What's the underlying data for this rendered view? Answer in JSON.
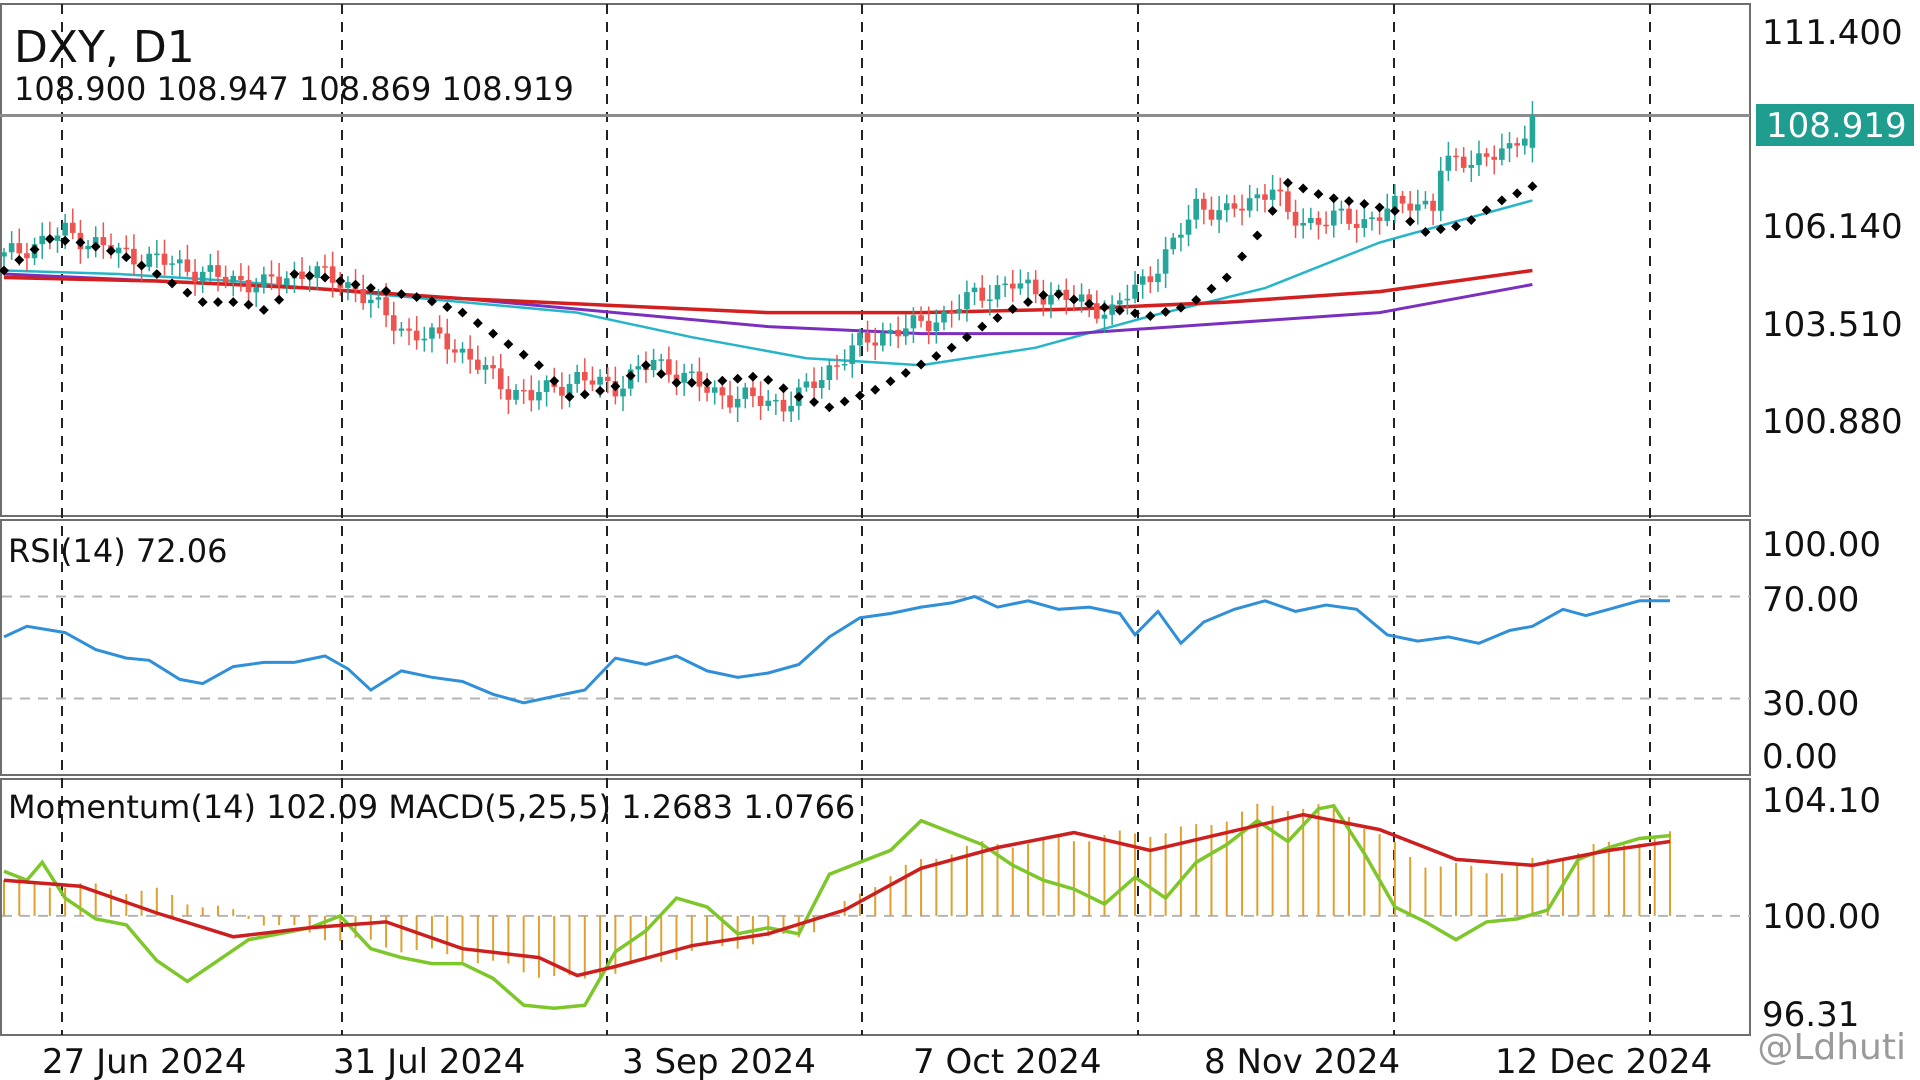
{
  "chart_title": "DXY, D1",
  "ohlc_line": "108.900 108.947 108.869 108.919",
  "watermark": "@Ldhuti",
  "colors": {
    "up": "#26a69a",
    "down": "#ef5350",
    "ma_fast": "#26b5c8",
    "ma_mid": "#7b2fbe",
    "ma_slow": "#d21f1f",
    "sar": "#000000",
    "rsi": "#2f8fd8",
    "momentum": "#7dc72b",
    "macd_signal": "#cc1f1f",
    "macd_hist": "#e0a030",
    "price_tag": "#1f9d8f"
  },
  "x_axis": {
    "labels": [
      "27 Jun 2024",
      "31 Jul 2024",
      "3 Sep 2024",
      "7 Oct 2024",
      "8 Nov 2024",
      "12 Dec 2024"
    ]
  },
  "chart_data": [
    {
      "type": "candlestick",
      "title": "DXY, D1",
      "y_ticks": [
        "111.400",
        "106.140",
        "103.510",
        "100.880"
      ],
      "ylim": [
        97.5,
        112.1
      ],
      "last_price_label": "108.919",
      "last_price": 108.919,
      "ohlc": [
        108.9,
        108.947,
        108.869,
        108.919
      ],
      "close_path": [
        [
          0,
          104.9
        ],
        [
          8,
          105.6
        ],
        [
          15,
          105.0
        ],
        [
          22,
          104.7
        ],
        [
          28,
          104.3
        ],
        [
          34,
          104.1
        ],
        [
          40,
          104.5
        ],
        [
          46,
          104.0
        ],
        [
          50,
          103.2
        ],
        [
          53,
          102.7
        ],
        [
          58,
          102.5
        ],
        [
          62,
          101.8
        ],
        [
          66,
          101.1
        ],
        [
          69,
          100.9
        ],
        [
          72,
          101.2
        ],
        [
          75,
          101.4
        ],
        [
          80,
          101.2
        ],
        [
          85,
          101.9
        ],
        [
          88,
          101.6
        ],
        [
          92,
          101.1
        ],
        [
          95,
          100.9
        ],
        [
          99,
          100.8
        ],
        [
          102,
          100.7
        ],
        [
          104,
          100.9
        ],
        [
          108,
          101.7
        ],
        [
          112,
          102.4
        ],
        [
          115,
          102.7
        ],
        [
          119,
          102.9
        ],
        [
          123,
          103.2
        ],
        [
          127,
          103.8
        ],
        [
          132,
          104.1
        ],
        [
          137,
          103.8
        ],
        [
          141,
          103.6
        ],
        [
          145,
          103.3
        ],
        [
          147,
          103.8
        ],
        [
          150,
          104.4
        ],
        [
          153,
          105.2
        ],
        [
          156,
          106.4
        ],
        [
          160,
          106.1
        ],
        [
          163,
          106.5
        ],
        [
          166,
          106.9
        ],
        [
          168,
          106.0
        ],
        [
          171,
          105.9
        ],
        [
          174,
          106.0
        ],
        [
          178,
          105.9
        ],
        [
          181,
          106.2
        ],
        [
          184,
          106.5
        ],
        [
          187,
          106.3
        ],
        [
          188,
          107.4
        ],
        [
          191,
          107.7
        ],
        [
          194,
          107.7
        ],
        [
          197,
          107.9
        ],
        [
          200,
          108.9
        ]
      ],
      "sar": [
        [
          0,
          104.5
        ],
        [
          6,
          105.4
        ],
        [
          10,
          105.3
        ],
        [
          15,
          105.0
        ],
        [
          20,
          104.4
        ],
        [
          26,
          103.6
        ],
        [
          31,
          103.6
        ],
        [
          35,
          103.3
        ],
        [
          38,
          104.4
        ],
        [
          42,
          104.3
        ],
        [
          48,
          104.0
        ],
        [
          55,
          103.7
        ],
        [
          60,
          103.3
        ],
        [
          64,
          102.7
        ],
        [
          70,
          101.8
        ],
        [
          74,
          100.9
        ],
        [
          77,
          101.0
        ],
        [
          80,
          101.2
        ],
        [
          84,
          101.8
        ],
        [
          88,
          101.3
        ],
        [
          92,
          101.3
        ],
        [
          99,
          101.5
        ],
        [
          104,
          100.9
        ],
        [
          108,
          100.6
        ],
        [
          114,
          101.1
        ],
        [
          119,
          101.7
        ],
        [
          124,
          102.3
        ],
        [
          128,
          102.9
        ],
        [
          132,
          103.4
        ],
        [
          137,
          103.9
        ],
        [
          141,
          103.6
        ],
        [
          145,
          103.4
        ],
        [
          150,
          103.2
        ],
        [
          155,
          103.5
        ],
        [
          160,
          104.3
        ],
        [
          165,
          105.8
        ],
        [
          168,
          107.0
        ],
        [
          173,
          106.6
        ],
        [
          178,
          106.4
        ],
        [
          182,
          106.2
        ],
        [
          186,
          105.6
        ],
        [
          191,
          105.8
        ],
        [
          196,
          106.5
        ],
        [
          200,
          106.9
        ]
      ],
      "series": [
        {
          "points": [
            [
              0,
              104.5
            ],
            [
              15,
              104.4
            ],
            [
              30,
              104.2
            ],
            [
              45,
              103.9
            ],
            [
              60,
              103.6
            ],
            [
              75,
              103.3
            ],
            [
              90,
              102.6
            ],
            [
              105,
              102.0
            ],
            [
              120,
              101.8
            ],
            [
              135,
              102.3
            ],
            [
              150,
              103.2
            ],
            [
              165,
              104.0
            ],
            [
              180,
              105.3
            ],
            [
              200,
              106.5
            ]
          ]
        },
        {
          "points": [
            [
              0,
              104.4
            ],
            [
              20,
              104.2
            ],
            [
              40,
              104.0
            ],
            [
              60,
              103.7
            ],
            [
              80,
              103.3
            ],
            [
              100,
              102.9
            ],
            [
              120,
              102.7
            ],
            [
              140,
              102.7
            ],
            [
              160,
              103.0
            ],
            [
              180,
              103.3
            ],
            [
              200,
              104.1
            ]
          ]
        },
        {
          "points": [
            [
              0,
              104.3
            ],
            [
              20,
              104.2
            ],
            [
              40,
              104.0
            ],
            [
              60,
              103.7
            ],
            [
              80,
              103.5
            ],
            [
              100,
              103.3
            ],
            [
              120,
              103.3
            ],
            [
              140,
              103.4
            ],
            [
              160,
              103.6
            ],
            [
              180,
              103.9
            ],
            [
              200,
              104.5
            ]
          ]
        }
      ]
    },
    {
      "type": "line",
      "label": "RSI(14) 72.06",
      "y_ticks": [
        "100.00",
        "70.00",
        "30.00",
        "0.00"
      ],
      "ylim": [
        0,
        100
      ],
      "levels": [
        70,
        30
      ],
      "series": [
        {
          "points": [
            [
              0,
              55
            ],
            [
              3,
              60
            ],
            [
              8,
              57
            ],
            [
              12,
              49
            ],
            [
              16,
              45
            ],
            [
              19,
              44
            ],
            [
              23,
              35
            ],
            [
              26,
              33
            ],
            [
              30,
              41
            ],
            [
              34,
              43
            ],
            [
              38,
              43
            ],
            [
              42,
              46
            ],
            [
              45,
              40
            ],
            [
              48,
              30
            ],
            [
              52,
              39
            ],
            [
              56,
              36
            ],
            [
              60,
              34
            ],
            [
              64,
              28
            ],
            [
              68,
              24
            ],
            [
              72,
              27
            ],
            [
              76,
              30
            ],
            [
              80,
              45
            ],
            [
              84,
              42
            ],
            [
              88,
              46
            ],
            [
              92,
              39
            ],
            [
              96,
              36
            ],
            [
              100,
              38
            ],
            [
              104,
              42
            ],
            [
              108,
              55
            ],
            [
              112,
              64
            ],
            [
              116,
              66
            ],
            [
              120,
              69
            ],
            [
              124,
              71
            ],
            [
              127,
              74
            ],
            [
              130,
              69
            ],
            [
              134,
              72
            ],
            [
              138,
              68
            ],
            [
              142,
              69
            ],
            [
              146,
              66
            ],
            [
              148,
              56
            ],
            [
              151,
              67
            ],
            [
              154,
              52
            ],
            [
              157,
              62
            ],
            [
              161,
              68
            ],
            [
              165,
              72
            ],
            [
              169,
              67
            ],
            [
              173,
              70
            ],
            [
              177,
              68
            ],
            [
              181,
              56
            ],
            [
              185,
              53
            ],
            [
              189,
              55
            ],
            [
              193,
              52
            ],
            [
              197,
              58
            ],
            [
              200,
              60
            ],
            [
              204,
              68
            ],
            [
              207,
              65
            ],
            [
              210,
              68
            ],
            [
              214,
              72
            ],
            [
              218,
              72
            ]
          ]
        }
      ]
    },
    {
      "type": "bar",
      "label": "Momentum(14) 102.09 MACD(5,25,5) 1.2683 1.0766",
      "y_ticks": [
        "104.10",
        "100.00",
        "96.31"
      ],
      "ylim": [
        96.0,
        104.6
      ],
      "baseline": 100.0,
      "momentum": [
        [
          0,
          101.5
        ],
        [
          3,
          101.2
        ],
        [
          5,
          101.8
        ],
        [
          8,
          100.6
        ],
        [
          12,
          99.9
        ],
        [
          16,
          99.7
        ],
        [
          20,
          98.5
        ],
        [
          24,
          97.8
        ],
        [
          28,
          98.5
        ],
        [
          32,
          99.2
        ],
        [
          36,
          99.4
        ],
        [
          40,
          99.6
        ],
        [
          44,
          100.0
        ],
        [
          48,
          98.9
        ],
        [
          52,
          98.6
        ],
        [
          56,
          98.4
        ],
        [
          60,
          98.4
        ],
        [
          64,
          97.9
        ],
        [
          68,
          97.0
        ],
        [
          72,
          96.9
        ],
        [
          76,
          97.0
        ],
        [
          80,
          98.8
        ],
        [
          84,
          99.5
        ],
        [
          88,
          100.6
        ],
        [
          92,
          100.3
        ],
        [
          96,
          99.4
        ],
        [
          100,
          99.6
        ],
        [
          104,
          99.4
        ],
        [
          108,
          101.4
        ],
        [
          112,
          101.8
        ],
        [
          116,
          102.2
        ],
        [
          120,
          103.2
        ],
        [
          124,
          102.8
        ],
        [
          128,
          102.4
        ],
        [
          132,
          101.7
        ],
        [
          136,
          101.2
        ],
        [
          140,
          100.9
        ],
        [
          144,
          100.4
        ],
        [
          148,
          101.3
        ],
        [
          152,
          100.6
        ],
        [
          156,
          101.8
        ],
        [
          160,
          102.4
        ],
        [
          164,
          103.2
        ],
        [
          168,
          102.5
        ],
        [
          172,
          103.6
        ],
        [
          174,
          103.7
        ],
        [
          178,
          102.1
        ],
        [
          182,
          100.3
        ],
        [
          186,
          99.8
        ],
        [
          190,
          99.2
        ],
        [
          194,
          99.8
        ],
        [
          198,
          99.9
        ],
        [
          202,
          100.2
        ],
        [
          206,
          101.9
        ],
        [
          210,
          102.3
        ],
        [
          214,
          102.6
        ],
        [
          218,
          102.7
        ]
      ],
      "macd_signal": [
        [
          0,
          101.2
        ],
        [
          10,
          101.0
        ],
        [
          20,
          100.1
        ],
        [
          30,
          99.3
        ],
        [
          40,
          99.6
        ],
        [
          50,
          99.8
        ],
        [
          60,
          98.9
        ],
        [
          70,
          98.6
        ],
        [
          75,
          98.0
        ],
        [
          80,
          98.3
        ],
        [
          90,
          99.0
        ],
        [
          100,
          99.4
        ],
        [
          110,
          100.2
        ],
        [
          120,
          101.6
        ],
        [
          130,
          102.3
        ],
        [
          140,
          102.8
        ],
        [
          150,
          102.2
        ],
        [
          160,
          102.8
        ],
        [
          170,
          103.4
        ],
        [
          180,
          102.9
        ],
        [
          190,
          101.9
        ],
        [
          200,
          101.7
        ],
        [
          210,
          102.2
        ],
        [
          218,
          102.5
        ]
      ],
      "hist": [
        [
          0,
          101.2
        ],
        [
          20,
          100.8
        ],
        [
          40,
          99.4
        ],
        [
          60,
          98.6
        ],
        [
          75,
          97.8
        ],
        [
          90,
          98.8
        ],
        [
          105,
          99.4
        ],
        [
          115,
          101.3
        ],
        [
          125,
          102.3
        ],
        [
          140,
          102.6
        ],
        [
          155,
          102.9
        ],
        [
          165,
          103.7
        ],
        [
          175,
          103.6
        ],
        [
          185,
          101.8
        ],
        [
          195,
          101.5
        ],
        [
          210,
          102.4
        ],
        [
          218,
          102.7
        ]
      ]
    }
  ]
}
